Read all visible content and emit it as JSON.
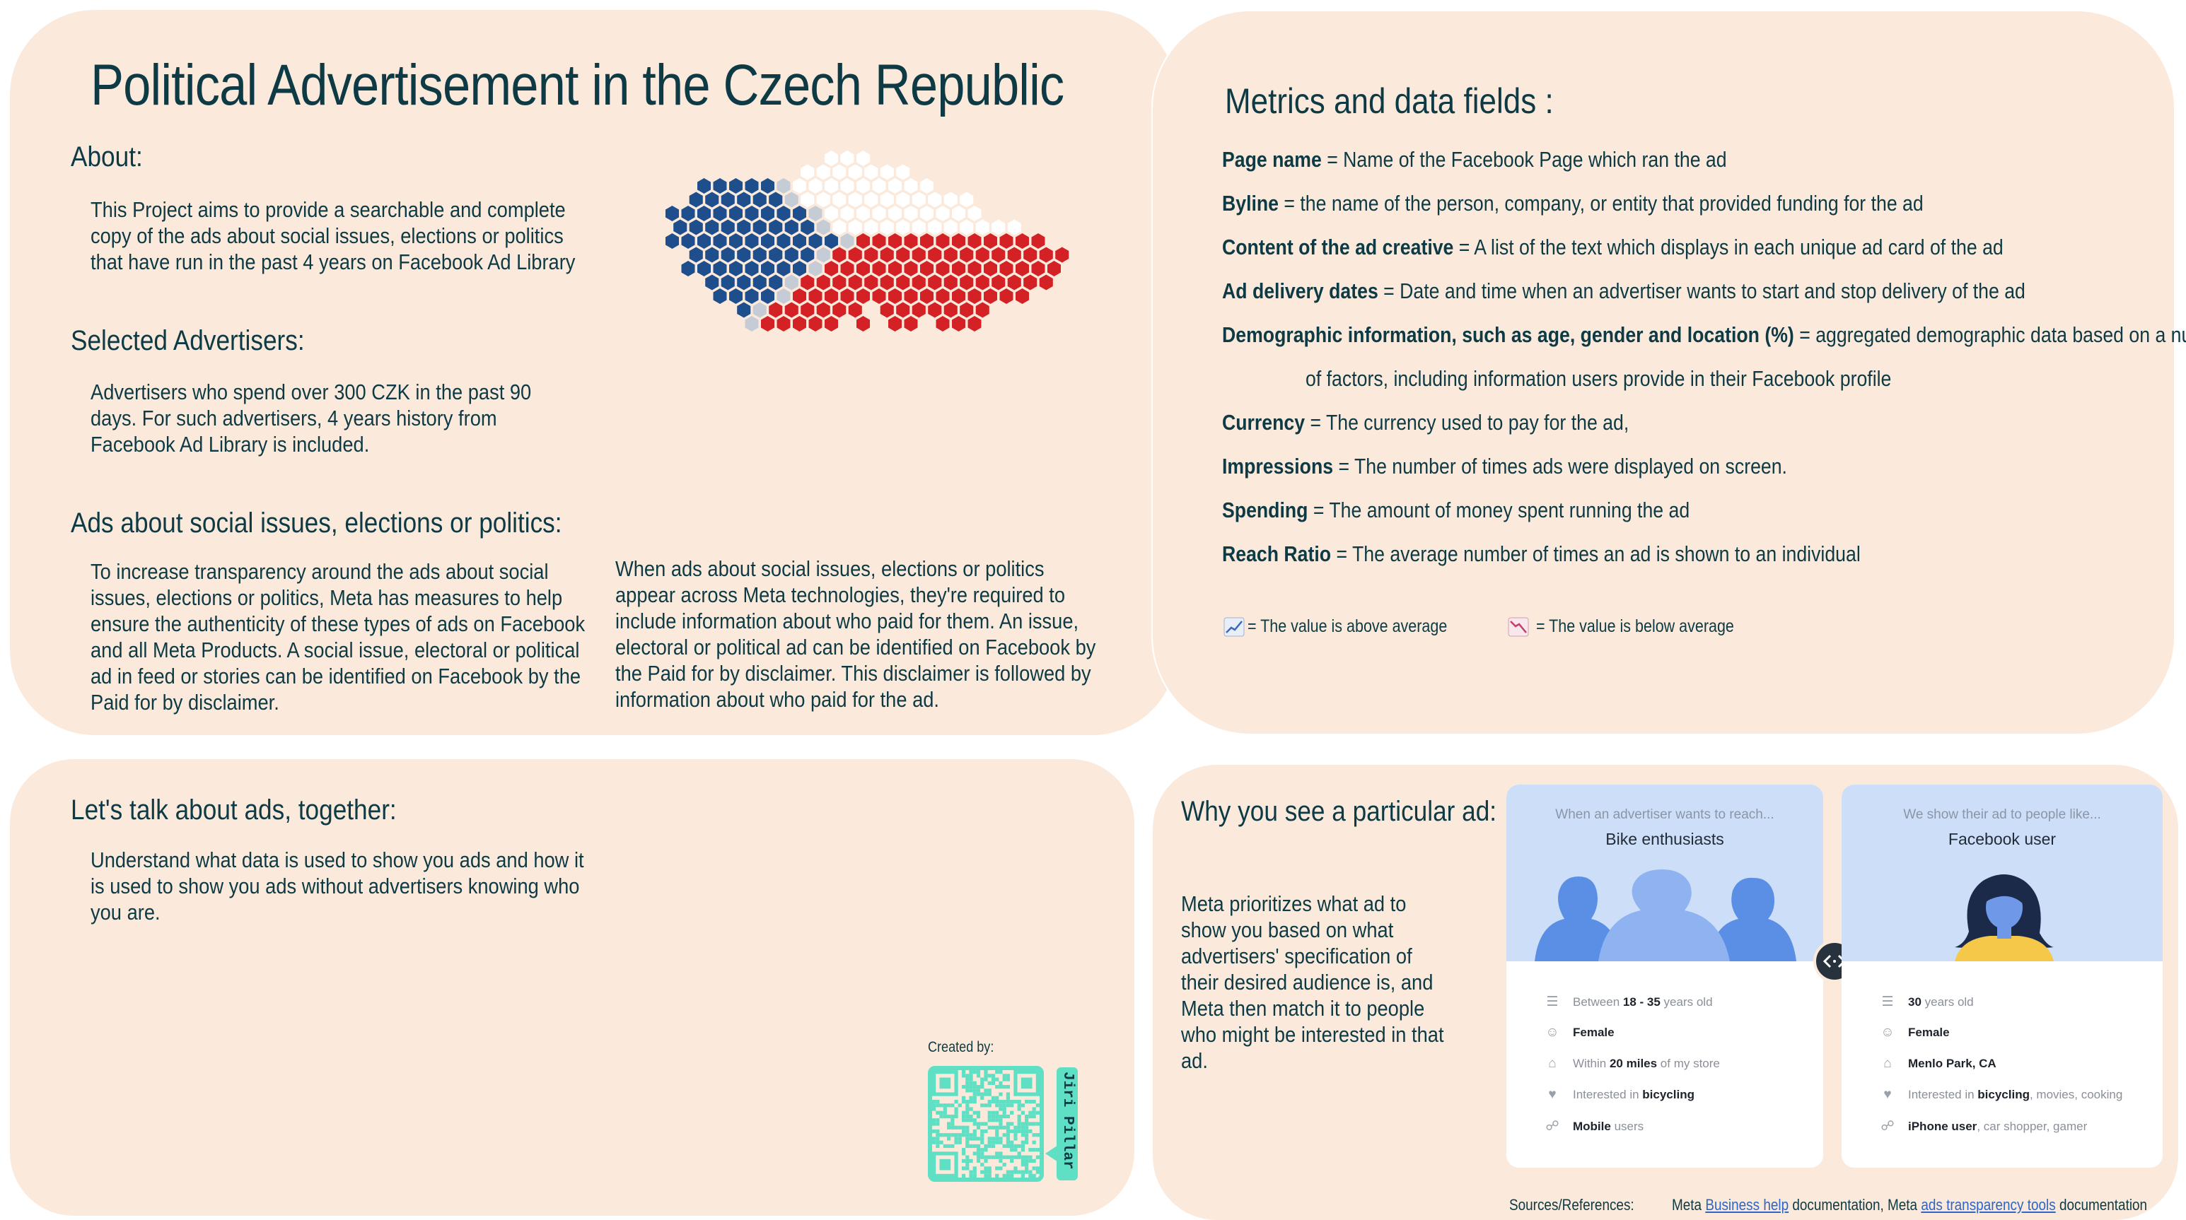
{
  "about_panel": {
    "title": "Political Advertisement in the Czech Republic",
    "about_heading": "About:",
    "about_text": "This Project aims to provide a searchable and complete copy of the ads about social issues, elections or politics that have run in the past 4 years on Facebook Ad Library",
    "selected_heading": "Selected Advertisers:",
    "selected_text": "Advertisers who spend over 300 CZK in the past 90 days. For such advertisers, 4 years history from Facebook Ad Library is included.",
    "ads_heading": "Ads about social issues, elections or politics:",
    "ads_text_left": "To increase transparency around the ads about social issues, elections or politics, Meta has measures to help ensure the authenticity of these types of ads on Facebook and all Meta Products. A social issue, electoral or political ad in feed or stories can be identified on Facebook by the Paid for by disclaimer.",
    "ads_text_right": "When ads about social issues, elections or politics appear across Meta technologies, they're required to include information about who paid for them. An issue, electoral or political ad can be identified on Facebook by the Paid for by disclaimer. This disclaimer is followed by information about who paid for the ad.",
    "map_colors": {
      "blue": "#1f4e8c",
      "red": "#d42126",
      "white": "#ffffff",
      "grey": "#c5ccd6"
    }
  },
  "metrics_panel": {
    "heading": "Metrics and data fields :",
    "items": [
      {
        "term": "Page name",
        "desc": " = Name of the Facebook Page which ran the ad"
      },
      {
        "term": "Byline",
        "desc": " = the name of the person, company, or entity that provided funding for the ad"
      },
      {
        "term": "Content of the ad creative",
        "desc": " = A list of the text which displays in each unique ad card of the ad"
      },
      {
        "term": "Ad delivery dates",
        "desc": " = Date and time when an advertiser wants to start and  stop delivery of the ad"
      },
      {
        "term": "Demographic information, such as age, gender and location (%)",
        "desc": " = aggregated demographic data based on a number"
      },
      {
        "term": "",
        "desc": "of factors, including information users provide in their Facebook profile"
      },
      {
        "term": "Currency",
        "desc": " = The currency used to pay for the ad,"
      },
      {
        "term": "Impressions",
        "desc": " = The number of times ads were displayed on screen."
      },
      {
        "term": "Spending",
        "desc": " = The amount of money spent running the ad"
      },
      {
        "term": "Reach Ratio",
        "desc": " = The average number of times an ad is shown to an individual"
      }
    ],
    "legend_above": "= The value is above average",
    "legend_below": "= The value is below average",
    "legend_above_icon": "chart-up-icon",
    "legend_below_icon": "chart-down-icon"
  },
  "talk_panel": {
    "heading": "Let's talk about ads, together:",
    "text": "Understand what data is used to show you ads and how it is used to show you ads without advertisers knowing who you are.",
    "created_by": "Created by:",
    "author": "Jiri Pillar",
    "qr_color": "#5fe0c4"
  },
  "why_panel": {
    "heading": "Why you see a particular ad:",
    "text": "Meta prioritizes what ad to show you based on what advertisers' specification of their desired audience is, and Meta then match it to people who might be interested in that ad.",
    "advertiser_card": {
      "caption": "When an advertiser wants to reach...",
      "headline": "Bike enthusiasts",
      "attributes": [
        {
          "icon": "cake-icon",
          "pre": "Between ",
          "bold": "18 - 35",
          "post": " years old"
        },
        {
          "icon": "person-icon",
          "pre": "",
          "bold": "Female",
          "post": ""
        },
        {
          "icon": "home-icon",
          "pre": "Within ",
          "bold": "20 miles",
          "post": " of my store"
        },
        {
          "icon": "heart-icon",
          "pre": "Interested in ",
          "bold": "bicycling",
          "post": ""
        },
        {
          "icon": "link-icon",
          "pre": "",
          "bold": "Mobile",
          "post": " users"
        }
      ]
    },
    "user_card": {
      "caption": "We show their ad to people like...",
      "headline": "Facebook user",
      "attributes": [
        {
          "icon": "cake-icon",
          "pre": "",
          "bold": "30",
          "post": " years old"
        },
        {
          "icon": "person-icon",
          "pre": "",
          "bold": "Female",
          "post": ""
        },
        {
          "icon": "home-icon",
          "pre": "",
          "bold": "Menlo Park, CA",
          "post": ""
        },
        {
          "icon": "heart-icon",
          "pre": "Interested in ",
          "bold": "bicycling",
          "post": ", movies, cooking"
        },
        {
          "icon": "link-icon",
          "pre": "",
          "bold": "iPhone user",
          "post": ", car shopper, gamer"
        }
      ]
    },
    "swap_icon": "swap-icon",
    "sources_label": "Sources/References:",
    "sources_pre": "Meta ",
    "sources_link1": "Business help",
    "sources_mid": " documentation, Meta ",
    "sources_link2": "ads transparency tools",
    "sources_post": " documentation"
  }
}
